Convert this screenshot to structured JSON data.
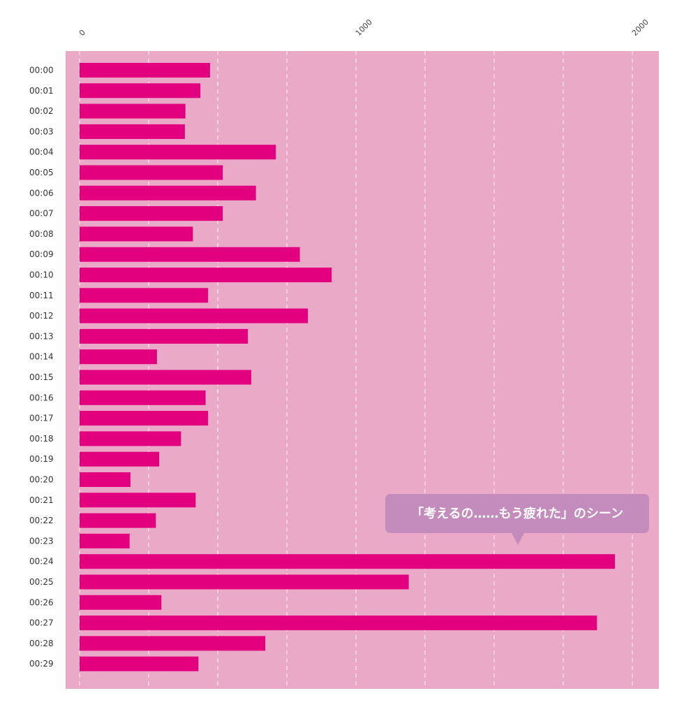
{
  "colors": {
    "plot_background": "#eaa9c6",
    "bar": "#e2007f",
    "grid": "#ffffff",
    "callout_background": "#c48bbd",
    "callout_text": "#ffffff"
  },
  "chart_data": {
    "type": "bar",
    "orientation": "horizontal",
    "title": "",
    "xlabel": "",
    "ylabel": "",
    "xlim": [
      0,
      2100
    ],
    "x_ticks": [
      0,
      1000,
      2000
    ],
    "x_tick_labels": [
      "0",
      "1000",
      "2000"
    ],
    "x_axis_position": "top",
    "grid": "vertical dashed lines every 250",
    "categories": [
      "00:00",
      "00:01",
      "00:02",
      "00:03",
      "00:04",
      "00:05",
      "00:06",
      "00:07",
      "00:08",
      "00:09",
      "00:10",
      "00:11",
      "00:12",
      "00:13",
      "00:14",
      "00:15",
      "00:16",
      "00:17",
      "00:18",
      "00:19",
      "00:20",
      "00:21",
      "00:22",
      "00:23",
      "00:24",
      "00:25",
      "00:26",
      "00:27",
      "00:28",
      "00:29"
    ],
    "values": [
      472,
      437,
      383,
      381,
      710,
      518,
      638,
      518,
      410,
      797,
      912,
      465,
      826,
      609,
      280,
      621,
      456,
      465,
      367,
      288,
      184,
      420,
      276,
      181,
      1937,
      1191,
      296,
      1872,
      672,
      430
    ],
    "annotations": [
      {
        "text": "「考えるの……もう疲れた」のシーン",
        "target_category": "00:24"
      }
    ]
  }
}
